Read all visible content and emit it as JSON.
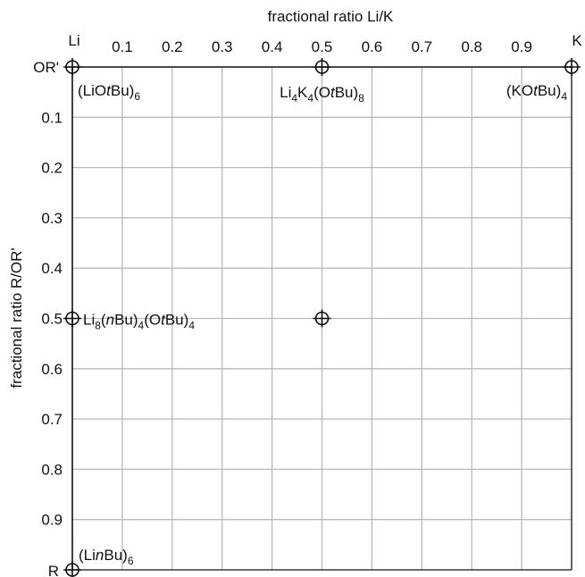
{
  "chart_data": {
    "type": "scatter",
    "xlabel": "fractional ratio Li/K",
    "ylabel": "fractional ratio R/OR'",
    "xlim": [
      0,
      1
    ],
    "ylim": [
      0,
      1
    ],
    "y_inverted": true,
    "x_axis_position": "top",
    "grid": true,
    "x_ticks": [
      "0.1",
      "0.2",
      "0.3",
      "0.4",
      "0.5",
      "0.6",
      "0.7",
      "0.8",
      "0.9"
    ],
    "y_ticks": [
      "0.1",
      "0.2",
      "0.3",
      "0.4",
      "0.5",
      "0.6",
      "0.7",
      "0.8",
      "0.9"
    ],
    "x_end_labels": {
      "left": "Li",
      "right": "K"
    },
    "y_end_labels": {
      "top": "OR'",
      "bottom": "R"
    },
    "points": [
      {
        "x": 0.0,
        "y": 0.0,
        "label": [
          {
            "t": "(LiO"
          },
          {
            "t": "t",
            "i": true
          },
          {
            "t": "Bu)"
          },
          {
            "t": "6",
            "sub": true
          }
        ]
      },
      {
        "x": 0.5,
        "y": 0.0,
        "label": [
          {
            "t": "Li"
          },
          {
            "t": "4",
            "sub": true
          },
          {
            "t": "K"
          },
          {
            "t": "4",
            "sub": true
          },
          {
            "t": "(O"
          },
          {
            "t": "t",
            "i": true
          },
          {
            "t": "Bu)"
          },
          {
            "t": "8",
            "sub": true
          }
        ]
      },
      {
        "x": 1.0,
        "y": 0.0,
        "label": [
          {
            "t": "(KO"
          },
          {
            "t": "t",
            "i": true
          },
          {
            "t": "Bu)"
          },
          {
            "t": "4",
            "sub": true
          }
        ]
      },
      {
        "x": 0.0,
        "y": 0.5,
        "label": [
          {
            "t": "Li"
          },
          {
            "t": "8",
            "sub": true
          },
          {
            "t": "("
          },
          {
            "t": "n",
            "i": true
          },
          {
            "t": "Bu)"
          },
          {
            "t": "4",
            "sub": true
          },
          {
            "t": "(O"
          },
          {
            "t": "t",
            "i": true
          },
          {
            "t": "Bu)"
          },
          {
            "t": "4",
            "sub": true
          }
        ]
      },
      {
        "x": 0.5,
        "y": 0.5,
        "label": []
      },
      {
        "x": 0.0,
        "y": 1.0,
        "label": [
          {
            "t": "(Li"
          },
          {
            "t": "n",
            "i": true
          },
          {
            "t": "Bu)"
          },
          {
            "t": "6",
            "sub": true
          }
        ]
      }
    ],
    "colors": {
      "grid": "#b9b9b9",
      "axis": "#111111",
      "marker": "#111111"
    }
  }
}
